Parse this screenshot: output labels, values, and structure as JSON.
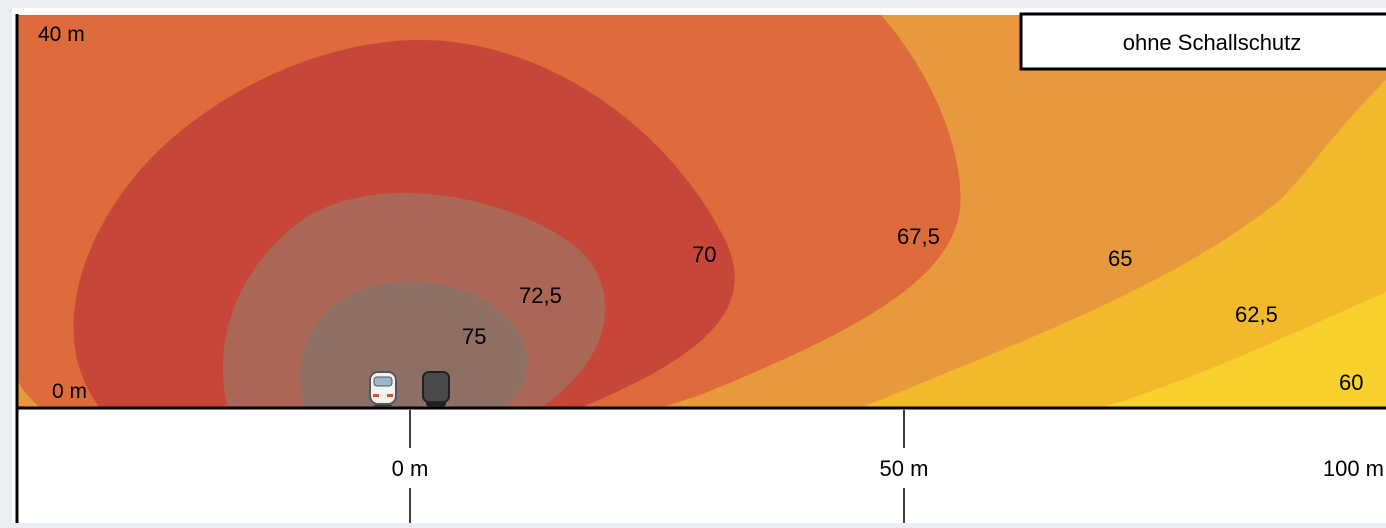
{
  "chart_data": {
    "type": "heatmap",
    "title": "ohne Schallschutz",
    "y_tick_labels": [
      "40 m",
      "0 m"
    ],
    "x_tick_labels": [
      "0 m",
      "50 m",
      "100 m"
    ],
    "x_ticks": [
      0,
      50,
      100
    ],
    "y_ticks": [
      40,
      0
    ],
    "contour_levels": [
      {
        "label": "75",
        "value": 75,
        "color": "#8e6f66"
      },
      {
        "label": "72,5",
        "value": 72.5,
        "color": "#ab6655"
      },
      {
        "label": "70",
        "value": 70,
        "color": "#c7463a"
      },
      {
        "label": "67,5",
        "value": 67.5,
        "color": "#de6b3b"
      },
      {
        "label": "65",
        "value": 65,
        "color": "#e8993e"
      },
      {
        "label": "62,5",
        "value": 62.5,
        "color": "#f3b92c"
      },
      {
        "label": "60",
        "value": 60,
        "color": "#f8d12c"
      }
    ],
    "train_icons": [
      "passenger-train-icon",
      "freight-train-icon"
    ]
  }
}
